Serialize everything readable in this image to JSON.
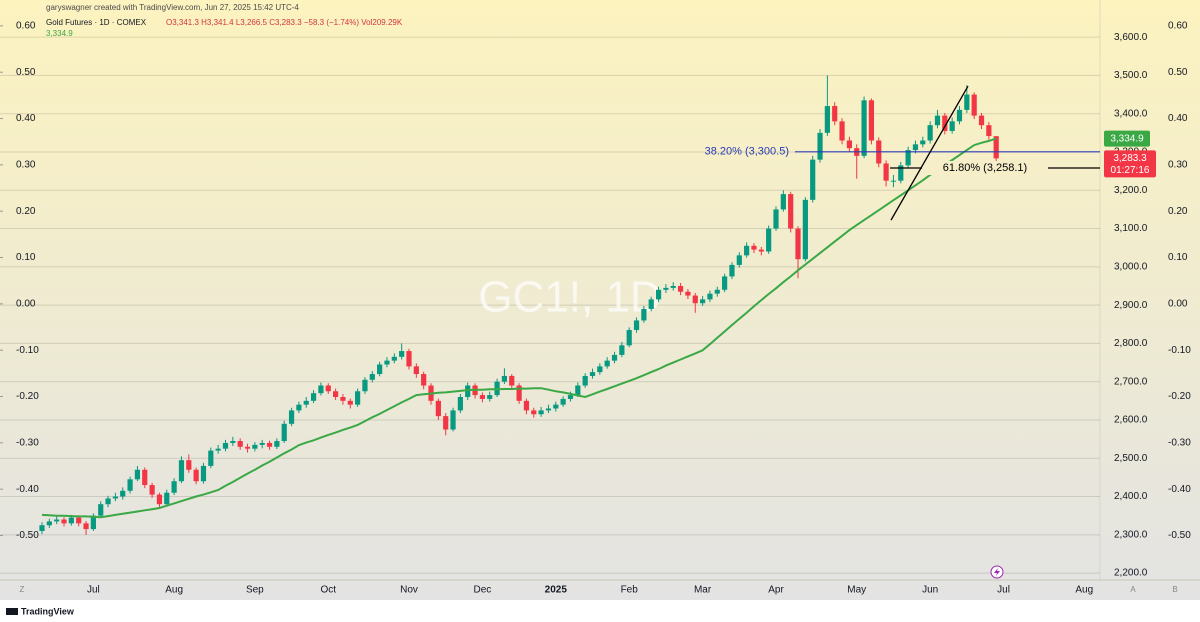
{
  "header": {
    "credit": "garyswagner created with TradingView.com, Jun 27, 2025 15:42 UTC-4",
    "symbol": "Gold Futures · 1D · COMEX",
    "ohlc": "O3,341.3 H3,341.4 L3,266.5 C3,283.3 −58.3 (−1.74%) Vol209.29K"
  },
  "ui": {
    "left_corner": "Z",
    "right_a": "A",
    "right_b": "B",
    "brand": "TradingView"
  },
  "chart_data": {
    "type": "candlestick",
    "watermark": "GC1!, 1D",
    "up_color": "#089981",
    "down_color": "#f23645",
    "grid": true,
    "categories": [
      null,
      null,
      null,
      null,
      null,
      null,
      null,
      "Jul",
      null,
      null,
      null,
      null,
      null,
      null,
      null,
      null,
      null,
      null,
      "Aug",
      null,
      null,
      null,
      null,
      null,
      null,
      null,
      null,
      null,
      null,
      "Sep",
      null,
      null,
      null,
      null,
      null,
      null,
      null,
      null,
      null,
      "Oct",
      null,
      null,
      null,
      null,
      null,
      null,
      null,
      null,
      null,
      null,
      "Nov",
      null,
      null,
      null,
      null,
      null,
      null,
      null,
      null,
      null,
      "Dec",
      null,
      null,
      null,
      null,
      null,
      null,
      null,
      null,
      null,
      "2025",
      null,
      null,
      null,
      null,
      null,
      null,
      null,
      null,
      null,
      "Feb",
      null,
      null,
      null,
      null,
      null,
      null,
      null,
      null,
      null,
      "Mar",
      null,
      null,
      null,
      null,
      null,
      null,
      null,
      null,
      null,
      "Apr",
      null,
      null,
      null,
      null,
      null,
      null,
      null,
      null,
      null,
      null,
      "May",
      null,
      null,
      null,
      null,
      null,
      null,
      null,
      null,
      null,
      "Jun",
      null,
      null,
      null,
      null,
      null,
      null,
      null,
      null,
      null,
      "Jul",
      null,
      null,
      null,
      null,
      null,
      null,
      null,
      null,
      null,
      null,
      "Aug"
    ],
    "open": [
      2310,
      2325,
      2335,
      2340,
      2330,
      2345,
      2330,
      2315,
      2350,
      2380,
      2395,
      2400,
      2415,
      2445,
      2470,
      2430,
      2405,
      2380,
      2410,
      2440,
      2495,
      2470,
      2440,
      2480,
      2520,
      2525,
      2540,
      2545,
      2530,
      2525,
      2535,
      2540,
      2530,
      2545,
      2590,
      2625,
      2640,
      2650,
      2670,
      2690,
      2675,
      2660,
      2650,
      2640,
      2675,
      2705,
      2720,
      2745,
      2755,
      2765,
      2780,
      2740,
      2720,
      2690,
      2650,
      2610,
      2575,
      2625,
      2660,
      2690,
      2665,
      2655,
      2665,
      2700,
      2715,
      2690,
      2650,
      2625,
      2615,
      2625,
      2630,
      2640,
      2655,
      2665,
      2690,
      2715,
      2725,
      2740,
      2755,
      2770,
      2795,
      2835,
      2860,
      2890,
      2915,
      2940,
      2945,
      2950,
      2935,
      2925,
      2905,
      2915,
      2930,
      2940,
      2975,
      3005,
      3030,
      3055,
      3045,
      3040,
      3100,
      3150,
      3190,
      3100,
      3020,
      3175,
      3280,
      3350,
      3420,
      3380,
      3330,
      3310,
      3290,
      3435,
      3330,
      3270,
      3225,
      3225,
      3265,
      3305,
      3320,
      3330,
      3370,
      3395,
      3355,
      3380,
      3410,
      3450,
      3395,
      3370,
      3341.3,
      null,
      null,
      null,
      null,
      null,
      null,
      null,
      null,
      null,
      null,
      null,
      null
    ],
    "high": [
      2333,
      2342,
      2350,
      2346,
      2352,
      2350,
      2336,
      2356,
      2388,
      2402,
      2410,
      2424,
      2452,
      2480,
      2476,
      2436,
      2410,
      2418,
      2448,
      2505,
      2510,
      2476,
      2488,
      2528,
      2535,
      2548,
      2556,
      2552,
      2538,
      2542,
      2548,
      2546,
      2552,
      2598,
      2632,
      2648,
      2660,
      2678,
      2698,
      2696,
      2682,
      2668,
      2656,
      2682,
      2712,
      2728,
      2752,
      2764,
      2774,
      2800,
      2786,
      2748,
      2726,
      2696,
      2656,
      2618,
      2632,
      2668,
      2698,
      2696,
      2672,
      2674,
      2708,
      2735,
      2720,
      2696,
      2656,
      2632,
      2634,
      2640,
      2648,
      2662,
      2674,
      2698,
      2722,
      2734,
      2748,
      2764,
      2778,
      2804,
      2842,
      2868,
      2898,
      2922,
      2948,
      2955,
      2960,
      2958,
      2942,
      2932,
      2924,
      2938,
      2948,
      2982,
      3012,
      3038,
      3064,
      3062,
      3052,
      3108,
      3158,
      3200,
      3196,
      3106,
      3182,
      3290,
      3360,
      3500,
      3430,
      3388,
      3340,
      3320,
      3445,
      3440,
      3338,
      3278,
      3240,
      3274,
      3314,
      3330,
      3340,
      3380,
      3410,
      3402,
      3390,
      3420,
      3475,
      3456,
      3402,
      3378,
      3341.4,
      null,
      null,
      null,
      null,
      null,
      null,
      null,
      null,
      null,
      null,
      null,
      null
    ],
    "low": [
      2302,
      2318,
      2328,
      2322,
      2324,
      2322,
      2300,
      2310,
      2344,
      2372,
      2388,
      2392,
      2408,
      2440,
      2422,
      2396,
      2372,
      2374,
      2404,
      2435,
      2462,
      2432,
      2434,
      2474,
      2512,
      2518,
      2532,
      2522,
      2515,
      2518,
      2526,
      2522,
      2524,
      2540,
      2584,
      2618,
      2632,
      2644,
      2664,
      2668,
      2652,
      2640,
      2630,
      2634,
      2668,
      2698,
      2714,
      2738,
      2748,
      2758,
      2732,
      2710,
      2680,
      2640,
      2600,
      2560,
      2570,
      2618,
      2652,
      2656,
      2646,
      2648,
      2660,
      2694,
      2682,
      2642,
      2615,
      2606,
      2608,
      2618,
      2622,
      2634,
      2648,
      2660,
      2684,
      2708,
      2718,
      2734,
      2748,
      2764,
      2790,
      2828,
      2854,
      2884,
      2908,
      2932,
      2938,
      2926,
      2916,
      2880,
      2898,
      2908,
      2922,
      2934,
      2968,
      2998,
      3024,
      3036,
      3030,
      3034,
      3094,
      3144,
      3090,
      2970,
      3014,
      3168,
      3272,
      3342,
      3370,
      3320,
      3300,
      3230,
      3284,
      3320,
      3260,
      3210,
      3208,
      3218,
      3258,
      3296,
      3312,
      3322,
      3362,
      3346,
      3348,
      3372,
      3402,
      3386,
      3360,
      3332,
      3266.5,
      null,
      null,
      null,
      null,
      null,
      null,
      null,
      null,
      null,
      null,
      null,
      null
    ],
    "close": [
      2325,
      2335,
      2340,
      2330,
      2345,
      2330,
      2315,
      2350,
      2380,
      2395,
      2400,
      2415,
      2445,
      2470,
      2430,
      2405,
      2380,
      2410,
      2440,
      2495,
      2470,
      2440,
      2480,
      2520,
      2525,
      2540,
      2545,
      2530,
      2525,
      2535,
      2540,
      2530,
      2545,
      2590,
      2625,
      2640,
      2650,
      2670,
      2690,
      2675,
      2660,
      2650,
      2640,
      2675,
      2705,
      2720,
      2745,
      2755,
      2765,
      2780,
      2740,
      2720,
      2690,
      2650,
      2610,
      2575,
      2625,
      2660,
      2690,
      2665,
      2655,
      2665,
      2700,
      2715,
      2690,
      2650,
      2625,
      2615,
      2625,
      2630,
      2640,
      2655,
      2665,
      2690,
      2715,
      2725,
      2740,
      2755,
      2770,
      2795,
      2835,
      2860,
      2890,
      2915,
      2940,
      2945,
      2950,
      2935,
      2925,
      2905,
      2915,
      2930,
      2940,
      2975,
      3005,
      3030,
      3055,
      3045,
      3040,
      3100,
      3150,
      3190,
      3100,
      3020,
      3175,
      3280,
      3350,
      3420,
      3380,
      3330,
      3310,
      3290,
      3435,
      3330,
      3270,
      3225,
      3225,
      3265,
      3305,
      3320,
      3330,
      3370,
      3395,
      3355,
      3380,
      3410,
      3450,
      3395,
      3370,
      3341.6,
      3283.3,
      null,
      null,
      null,
      null,
      null,
      null,
      null,
      null,
      null,
      null,
      null,
      null
    ],
    "last_label": "3,283.3",
    "countdown": "01:27:16",
    "ma": {
      "color": "#3aa845",
      "label": "3,334.9",
      "values": [
        2352,
        2351,
        2350,
        2350,
        2349,
        2348,
        2348,
        2347,
        2346,
        2349,
        2352,
        2355,
        2358,
        2361,
        2364,
        2367,
        2370,
        2376,
        2382,
        2388,
        2394,
        2400,
        2405,
        2411,
        2417,
        2428,
        2438,
        2449,
        2460,
        2470,
        2481,
        2491,
        2502,
        2513,
        2523,
        2534,
        2541,
        2547,
        2554,
        2561,
        2567,
        2574,
        2580,
        2587,
        2597,
        2607,
        2616,
        2626,
        2636,
        2646,
        2655,
        2665,
        2667,
        2669,
        2671,
        2672,
        2674,
        2676,
        2678,
        2679,
        2679,
        2680,
        2680,
        2681,
        2681,
        2682,
        2682,
        2683,
        2683,
        2679,
        2675,
        2672,
        2668,
        2664,
        2660,
        2667,
        2674,
        2681,
        2688,
        2695,
        2702,
        2709,
        2717,
        2725,
        2733,
        2742,
        2750,
        2758,
        2766,
        2774,
        2782,
        2798,
        2815,
        2831,
        2848,
        2864,
        2880,
        2897,
        2913,
        2929,
        2944,
        2960,
        2975,
        2991,
        3006,
        3021,
        3036,
        3051,
        3066,
        3081,
        3096,
        3109,
        3122,
        3135,
        3148,
        3161,
        3174,
        3187,
        3200,
        3213,
        3226,
        3240,
        3253,
        3266,
        3279,
        3292,
        3305,
        3318,
        3324,
        3329,
        3334.9,
        null,
        null,
        null,
        null,
        null,
        null,
        null,
        null,
        null,
        null,
        null,
        null
      ]
    },
    "levels": [
      {
        "value": 3300.5,
        "label": "38.20% (3,300.5)",
        "color": "#2a3ab8"
      },
      {
        "value": 3258.1,
        "label": "61.80% (3,258.1)",
        "color": "#000000"
      }
    ],
    "trendline": {
      "from": 3122,
      "to": 3472,
      "color": "#000000"
    },
    "ylim": [
      2182,
      3650
    ],
    "yticks": [
      {
        "value": 2200,
        "label": "2,200.0"
      },
      {
        "value": 2300,
        "label": "2,300.0"
      },
      {
        "value": 2400,
        "label": "2,400.0"
      },
      {
        "value": 2500,
        "label": "2,500.0"
      },
      {
        "value": 2600,
        "label": "2,600.0"
      },
      {
        "value": 2700,
        "label": "2,700.0"
      },
      {
        "value": 2800,
        "label": "2,800.0"
      },
      {
        "value": 2900,
        "label": "2,900.0"
      },
      {
        "value": 3000,
        "label": "3,000.0"
      },
      {
        "value": 3100,
        "label": "3,100.0"
      },
      {
        "value": 3200,
        "label": "3,200.0"
      },
      {
        "value": 3300,
        "label": "3,300.0"
      },
      {
        "value": 3400,
        "label": "3,400.0"
      },
      {
        "value": 3500,
        "label": "3,500.0"
      },
      {
        "value": 3600,
        "label": "3,600.0"
      }
    ],
    "y2lim": [
      -0.596,
      0.617
    ],
    "y2ticks": [
      {
        "value": 0.6,
        "label": "0.60"
      },
      {
        "value": 0.5,
        "label": "0.50"
      },
      {
        "value": 0.4,
        "label": "0.40"
      },
      {
        "value": 0.3,
        "label": "0.30"
      },
      {
        "value": 0.2,
        "label": "0.20"
      },
      {
        "value": 0.1,
        "label": "0.10"
      },
      {
        "value": 0,
        "label": "0.00"
      },
      {
        "value": -0.1,
        "label": "-0.10"
      },
      {
        "value": -0.2,
        "label": "-0.20"
      },
      {
        "value": -0.3,
        "label": "-0.30"
      },
      {
        "value": -0.4,
        "label": "-0.40"
      },
      {
        "value": -0.5,
        "label": "-0.50"
      }
    ]
  }
}
